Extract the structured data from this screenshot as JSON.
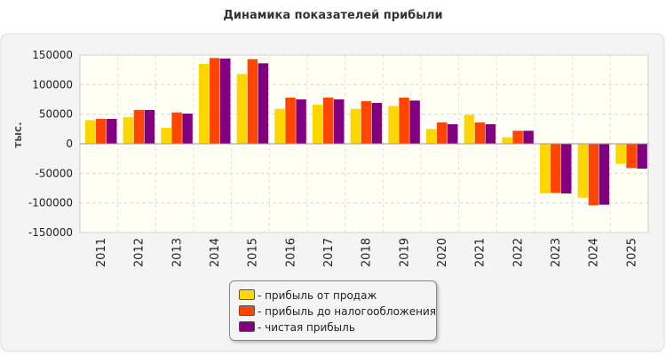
{
  "chart_data": {
    "type": "bar",
    "title": "Динамика показателей прибыли",
    "ylabel": "тыс.",
    "xlabel": "",
    "ylim": [
      -150000,
      150000
    ],
    "yticks": [
      150000,
      100000,
      50000,
      0,
      -50000,
      -100000,
      -150000
    ],
    "grid": true,
    "legend_position": "bottom-center",
    "categories": [
      "2011",
      "2012",
      "2013",
      "2014",
      "2015",
      "2016",
      "2017",
      "2018",
      "2019",
      "2020",
      "2021",
      "2022",
      "2023",
      "2024",
      "2025"
    ],
    "series": [
      {
        "name": "прибыль от продаж",
        "color": "#ffd700",
        "values": [
          40000,
          45000,
          27000,
          135000,
          118000,
          59000,
          66000,
          59000,
          64000,
          25000,
          49000,
          11000,
          -84000,
          -91000,
          -34000
        ]
      },
      {
        "name": "прибыль до налогообложения",
        "color": "#ff4500",
        "values": [
          42000,
          57000,
          53000,
          145000,
          143000,
          78000,
          78000,
          72000,
          78000,
          36000,
          36000,
          22000,
          -83000,
          -104000,
          -41000
        ]
      },
      {
        "name": "чистая прибыль",
        "color": "#800080",
        "values": [
          42000,
          57000,
          51000,
          144000,
          136000,
          75000,
          75000,
          69000,
          73000,
          33000,
          33000,
          22000,
          -84000,
          -103000,
          -42000
        ]
      }
    ]
  }
}
